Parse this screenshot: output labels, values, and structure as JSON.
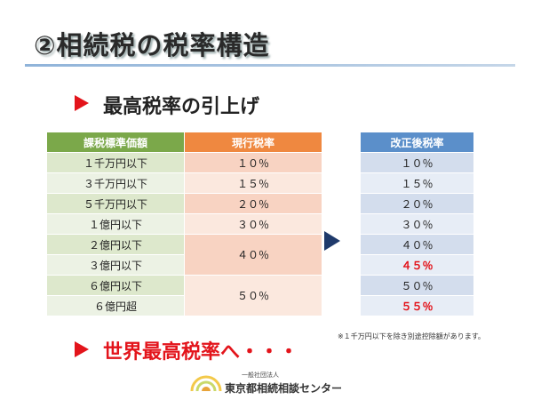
{
  "title": "②相続税の税率構造",
  "subtitle": "最高税率の引上げ",
  "table": {
    "headers": {
      "base": "課税標準価額",
      "current": "現行税率",
      "revised": "改正後税率"
    },
    "bases": [
      "１千万円以下",
      "３千万円以下",
      "５千万円以下",
      "１億円以下",
      "２億円以下",
      "３億円以下",
      "６億円以下",
      "６億円超"
    ],
    "current_rates": [
      "１０％",
      "１５％",
      "２０％",
      "３０％",
      "４０％",
      "５０％"
    ],
    "revised_rates": [
      "１０％",
      "１５％",
      "２０％",
      "３０％",
      "４０％",
      "４５％",
      "５０％",
      "５５％"
    ],
    "highlighted_revised": [
      "４５％",
      "５５％"
    ]
  },
  "note": "※１千万円以下を除き別途控除額があります。",
  "bottom_text": "世界最高税率へ・・・",
  "org": {
    "small": "一般社団法人",
    "main": "東京都相続相談センター"
  },
  "colors": {
    "accent_red": "#e3141b",
    "header_green": "#7ba84a",
    "header_orange": "#ef8840",
    "header_blue": "#5b8fca",
    "arrow_navy": "#1f3a6b"
  },
  "icons": {
    "bullet": "red-triangle-bullet-icon",
    "arrow": "navy-right-arrow-icon",
    "logo": "sunrise-logo-icon"
  }
}
